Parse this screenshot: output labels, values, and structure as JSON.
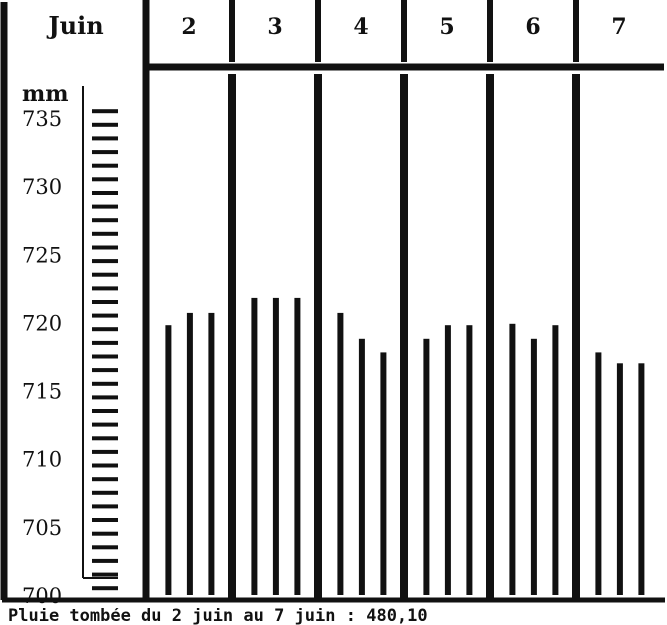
{
  "caption": "Pluie tombée du 2 juin au 7 juin : 480,10",
  "chart_data": {
    "type": "bar",
    "title": "",
    "month_label": "Juin",
    "ylabel": "mm",
    "ylim": [
      700,
      736
    ],
    "yticks": [
      "735",
      "730",
      "725",
      "720",
      "715",
      "710",
      "705",
      "700"
    ],
    "ytick_values": [
      735,
      730,
      725,
      720,
      715,
      710,
      705,
      700
    ],
    "days": [
      "2",
      "3",
      "4",
      "5",
      "6",
      "7"
    ],
    "series": [
      {
        "values": [
          [
            719.8,
            720.7,
            720.7
          ],
          [
            721.8,
            721.8,
            721.8
          ],
          [
            720.7,
            718.8,
            717.8
          ],
          [
            718.8,
            719.8,
            719.8
          ],
          [
            719.9,
            718.8,
            719.8
          ],
          [
            717.8,
            717.0,
            717.0
          ]
        ]
      }
    ],
    "grid": false,
    "legend": "none",
    "colors": {
      "ink": "#111111",
      "paper": "#ffffff"
    }
  }
}
